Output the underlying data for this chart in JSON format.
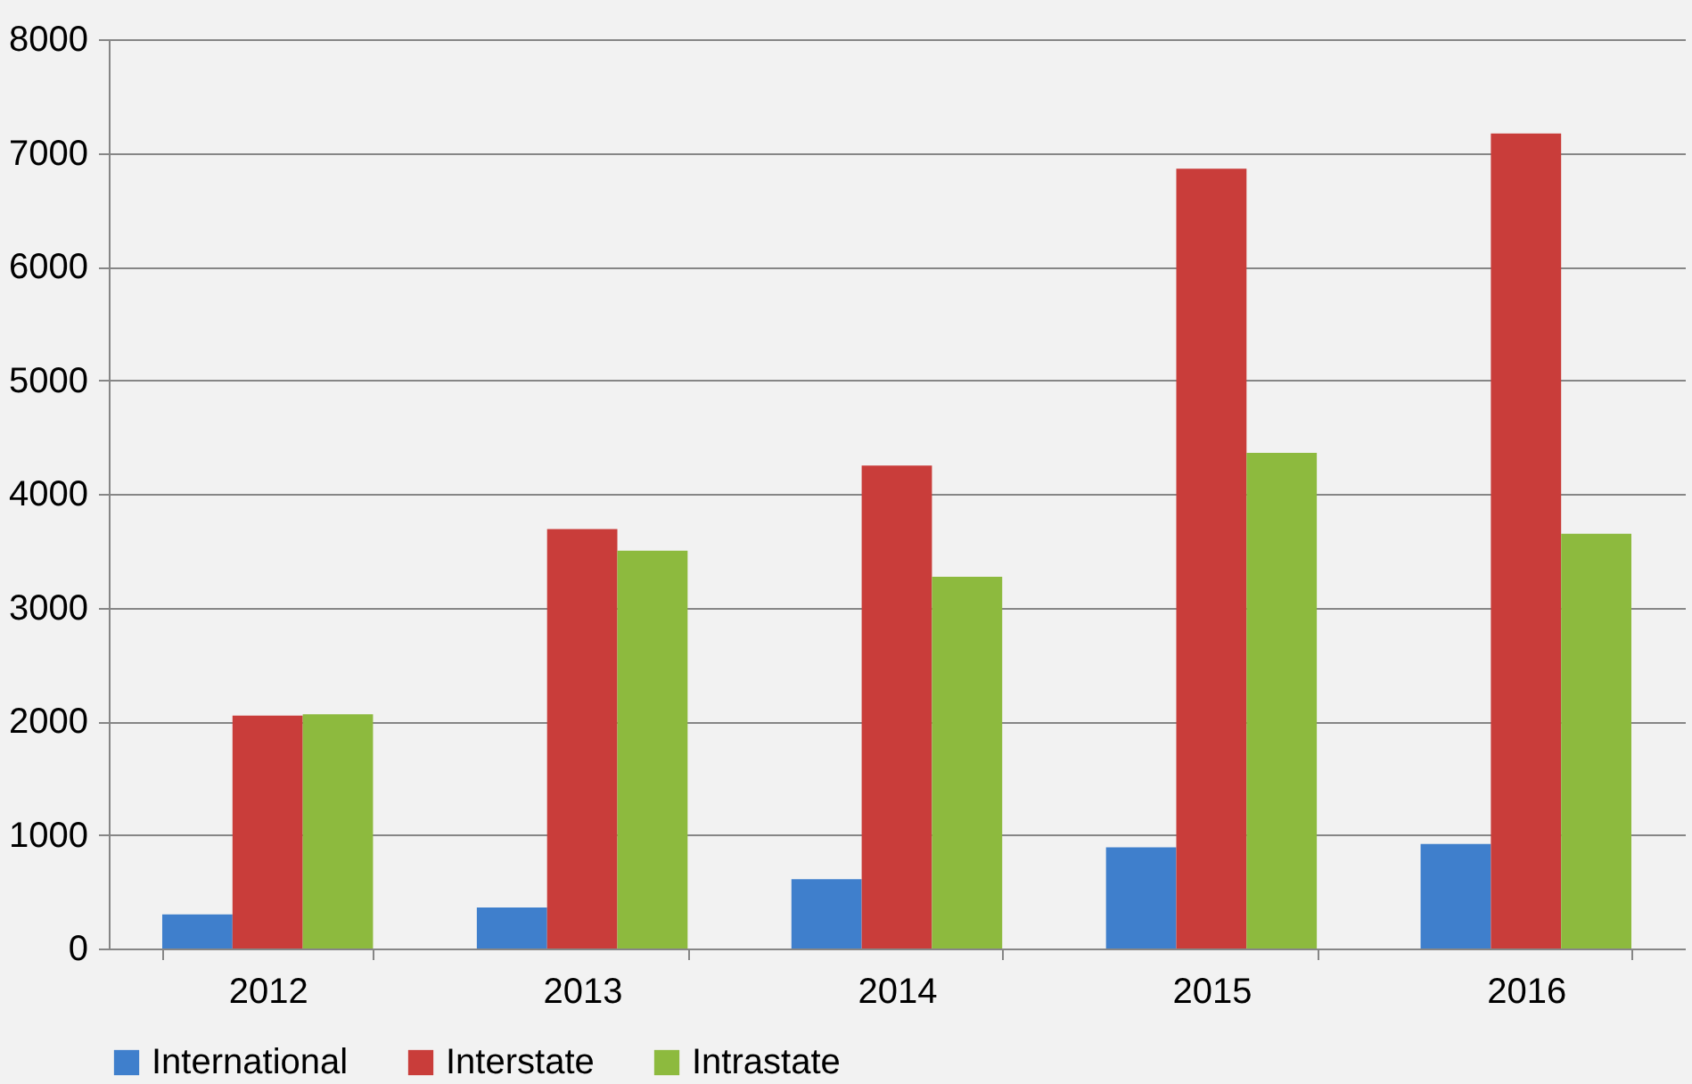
{
  "chart_data": {
    "type": "bar",
    "categories": [
      "2012",
      "2013",
      "2014",
      "2015",
      "2016"
    ],
    "series": [
      {
        "name": "International",
        "color": "#3f7fcc",
        "values": [
          300,
          360,
          610,
          890,
          920
        ]
      },
      {
        "name": "Interstate",
        "color": "#c93d3a",
        "values": [
          2050,
          3690,
          4250,
          6860,
          7170
        ]
      },
      {
        "name": "Intrastate",
        "color": "#8dba3e",
        "values": [
          2060,
          3500,
          3270,
          4360,
          3650
        ]
      }
    ],
    "ylim": [
      0,
      8000
    ],
    "yticks": [
      0,
      1000,
      2000,
      3000,
      4000,
      5000,
      6000,
      7000,
      8000
    ],
    "grid": "y",
    "legend": "bottom"
  }
}
